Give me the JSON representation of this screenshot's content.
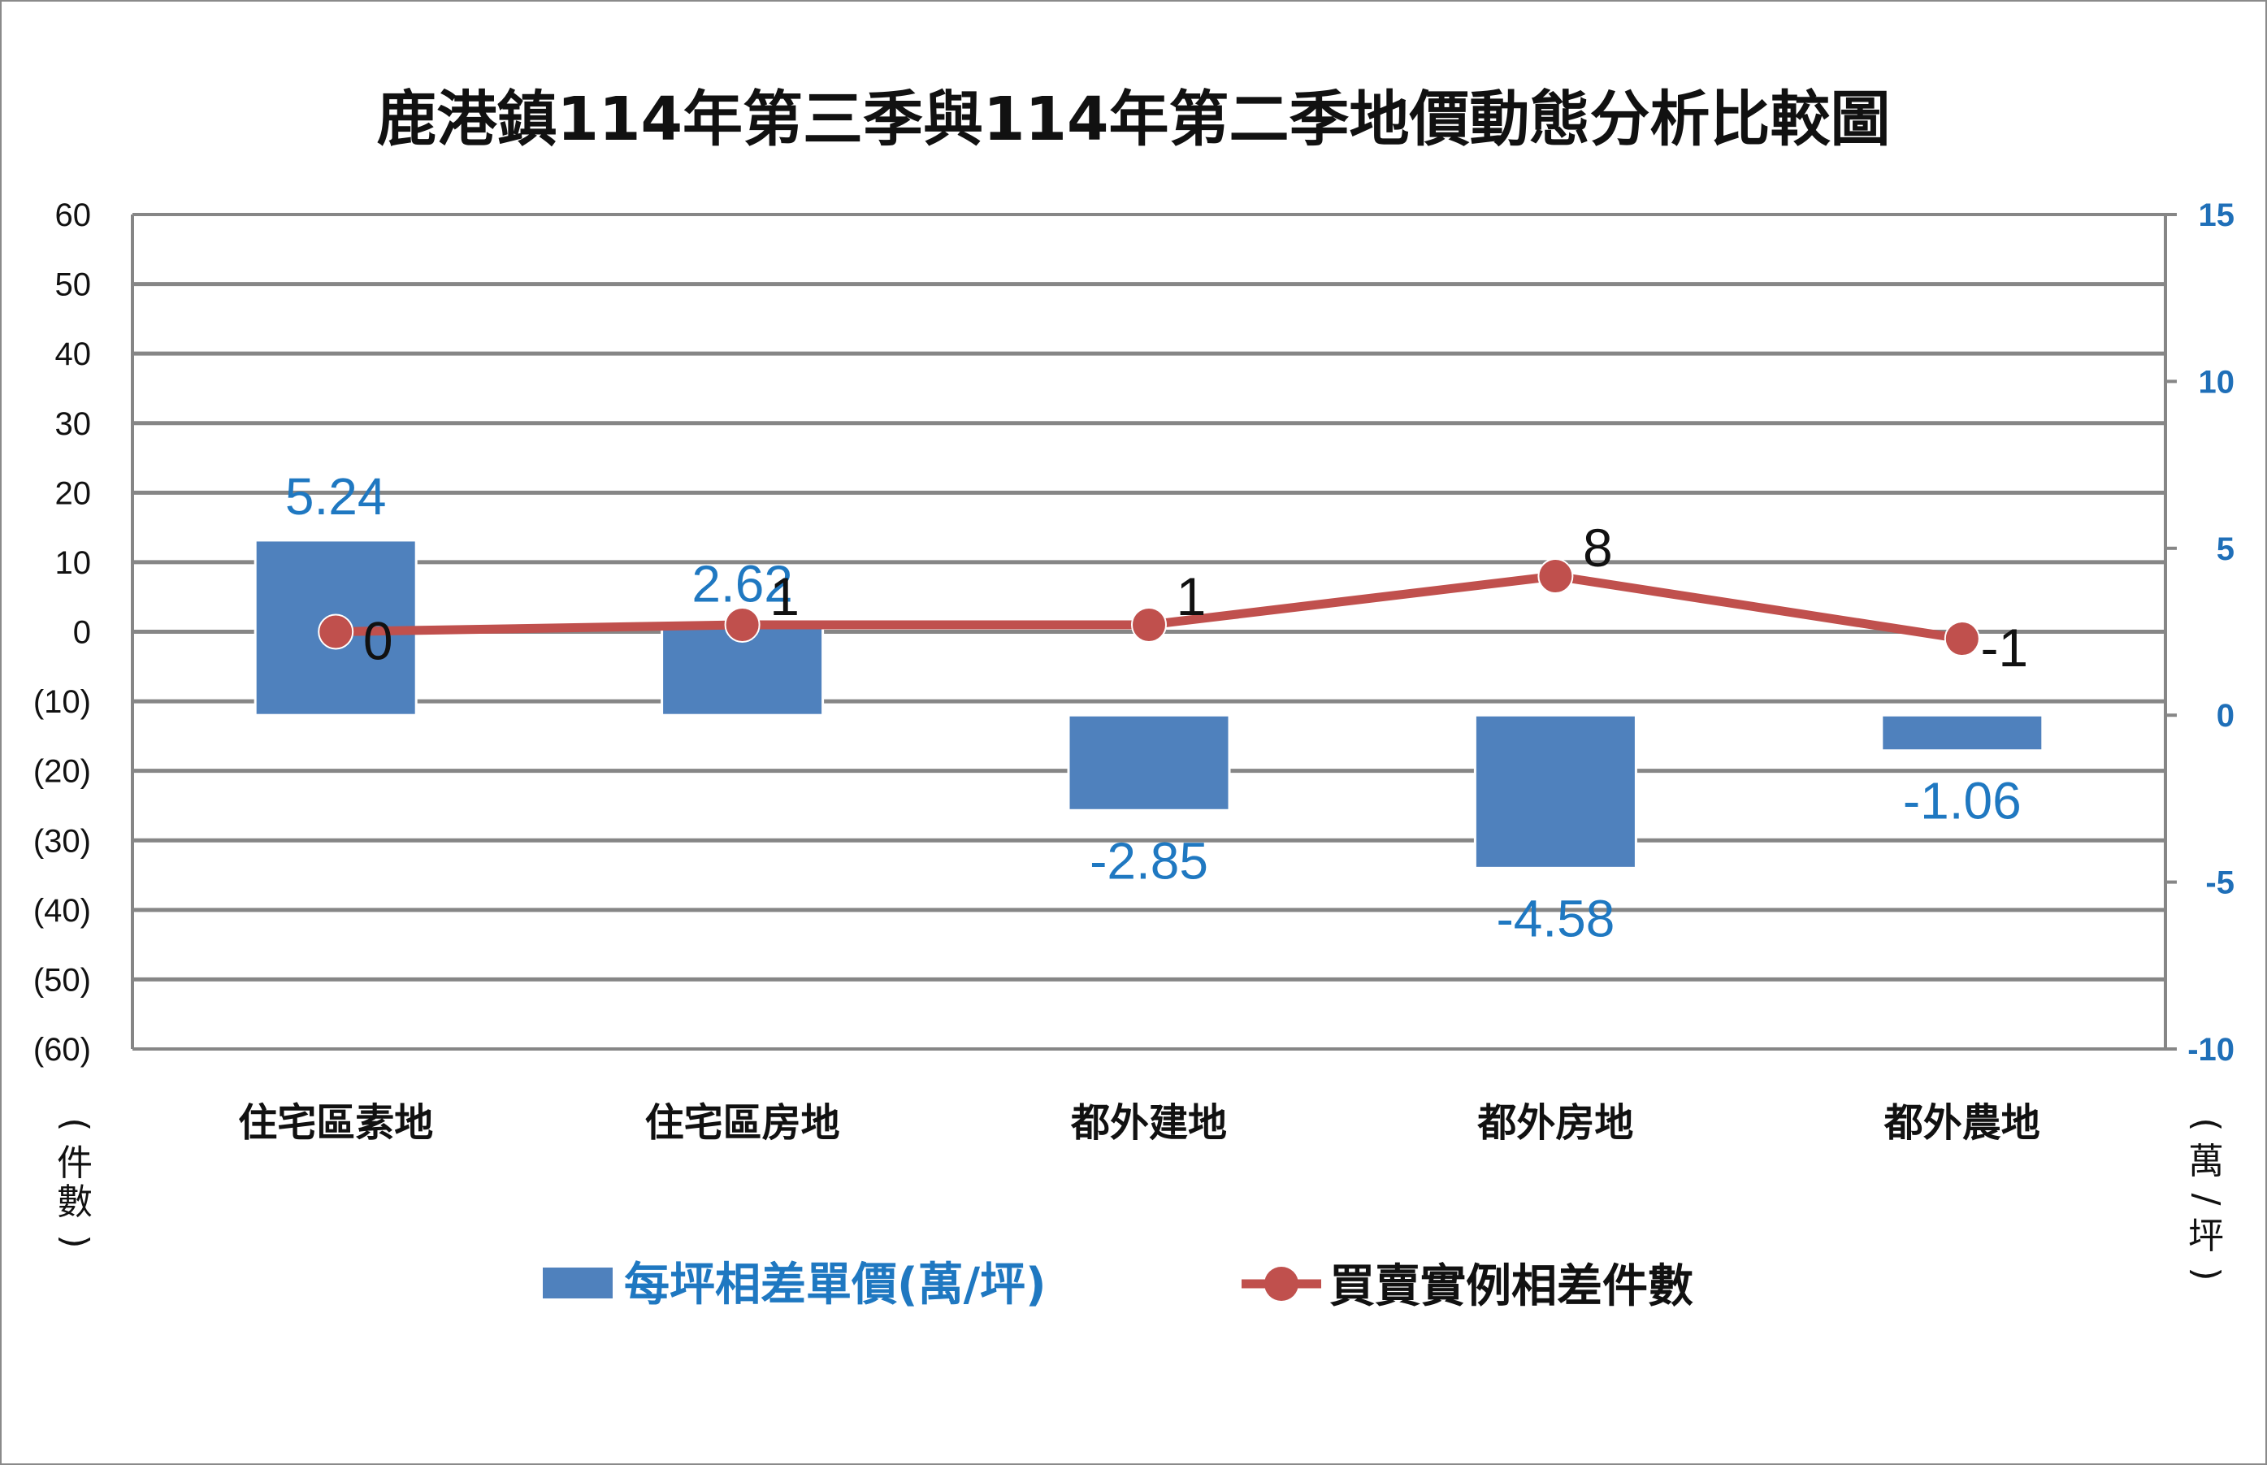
{
  "chart_data": {
    "type": "bar",
    "title": "鹿港鎮114年第三季與114年第二季地價動態分析比較圖",
    "categories": [
      "住宅區素地",
      "住宅區房地",
      "都外建地",
      "都外房地",
      "都外農地"
    ],
    "series": [
      {
        "name": "每坪相差單價(萬/坪)",
        "type": "bar",
        "axis": "right",
        "color": "#4f81bd",
        "values": [
          5.24,
          2.62,
          -2.85,
          -4.58,
          -1.06
        ],
        "labels": [
          "5.24",
          "2.62",
          "-2.85",
          "-4.58",
          "-1.06"
        ]
      },
      {
        "name": "買賣實例相差件數",
        "type": "line",
        "axis": "left",
        "color": "#c0504d",
        "values": [
          0,
          1,
          1,
          8,
          -1
        ],
        "labels": [
          "0",
          "1",
          "1",
          "8",
          "-1"
        ]
      }
    ],
    "left_axis": {
      "min": -60,
      "max": 60,
      "ticks": [
        "60",
        "50",
        "40",
        "30",
        "20",
        "10",
        "0",
        "(10)",
        "(20)",
        "(30)",
        "(40)",
        "(50)",
        "(60)"
      ],
      "unit_label": [
        "(",
        "件",
        "數",
        ")"
      ]
    },
    "right_axis": {
      "min": -10,
      "max": 15,
      "ticks": [
        "15",
        "10",
        "5",
        "0",
        "-5",
        "-10"
      ],
      "unit_label": [
        "(",
        "萬",
        "/",
        "坪",
        ")"
      ]
    },
    "grid": true,
    "legend_position": "bottom"
  }
}
